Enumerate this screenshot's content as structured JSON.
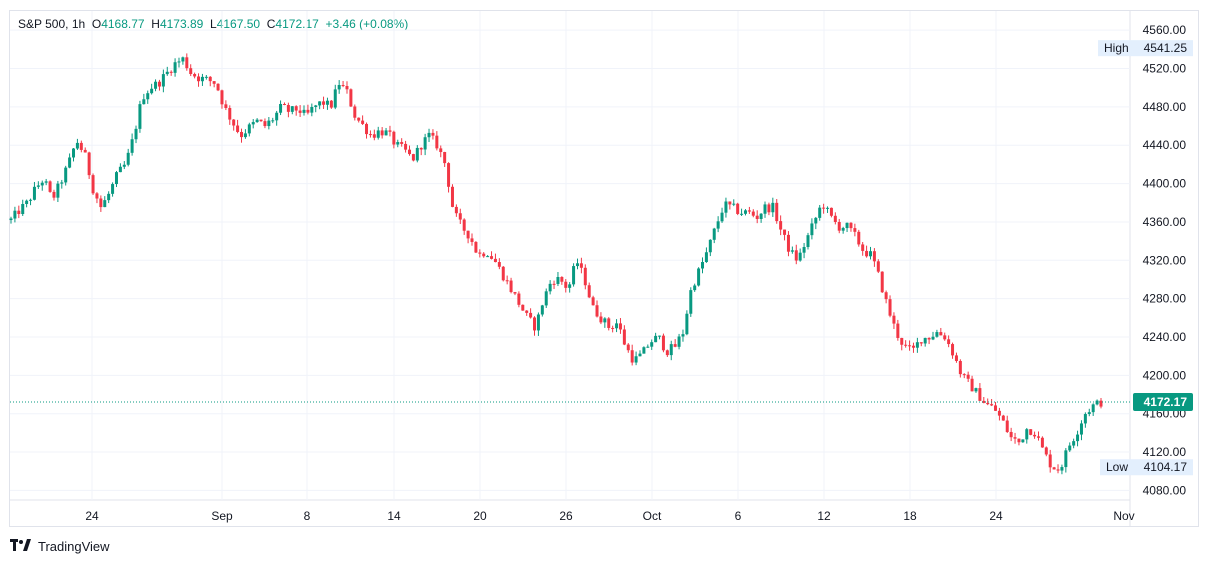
{
  "legend": {
    "symbol": "S&P 500",
    "interval": "1h",
    "open_label": "O",
    "open": "4168.77",
    "high_label": "H",
    "high": "4173.89",
    "low_label": "L",
    "low": "4167.50",
    "close_label": "C",
    "close": "4172.17",
    "change": "+3.46 (+0.08%)"
  },
  "footer": {
    "brand": "TradingView",
    "logo_icon": "tradingview-logo-icon"
  },
  "colors": {
    "up": "#089981",
    "down": "#f23645",
    "grid": "#f0f3fa",
    "axis_text": "#131722",
    "badge_bg": "#e3effd"
  },
  "chart_data": {
    "type": "candlestick",
    "y_ticks": [
      "4560.00",
      "4520.00",
      "4480.00",
      "4440.00",
      "4400.00",
      "4360.00",
      "4320.00",
      "4280.00",
      "4240.00",
      "4200.00",
      "4160.00",
      "4120.00",
      "4080.00"
    ],
    "x_ticks": [
      "24",
      "Sep",
      "8",
      "14",
      "20",
      "26",
      "Oct",
      "6",
      "12",
      "18",
      "24",
      "Nov"
    ],
    "ylim": [
      4070,
      4580
    ],
    "last_price": {
      "value": 4172.17,
      "label": "4172.17"
    },
    "high_marker": {
      "label": "High",
      "value": "4541.25"
    },
    "low_marker": {
      "label": "Low",
      "value": "4104.17"
    },
    "grid": true,
    "close_path": [
      4362,
      4372,
      4380,
      4395,
      4405,
      4383,
      4400,
      4420,
      4445,
      4430,
      4395,
      4375,
      4390,
      4410,
      4420,
      4450,
      4490,
      4500,
      4505,
      4515,
      4525,
      4530,
      4515,
      4510,
      4508,
      4505,
      4480,
      4465,
      4450,
      4458,
      4465,
      4460,
      4468,
      4480,
      4475,
      4478,
      4470,
      4480,
      4485,
      4480,
      4505,
      4495,
      4470,
      4460,
      4450,
      4455,
      4452,
      4440,
      4435,
      4425,
      4440,
      4450,
      4440,
      4420,
      4370,
      4355,
      4345,
      4325,
      4330,
      4320,
      4305,
      4290,
      4275,
      4260,
      4250,
      4280,
      4300,
      4300,
      4290,
      4320,
      4300,
      4270,
      4260,
      4250,
      4255,
      4230,
      4215,
      4222,
      4235,
      4240,
      4225,
      4230,
      4245,
      4290,
      4310,
      4330,
      4355,
      4378,
      4375,
      4370,
      4370,
      4365,
      4375,
      4375,
      4350,
      4330,
      4320,
      4340,
      4360,
      4380,
      4365,
      4355,
      4355,
      4345,
      4330,
      4325,
      4300,
      4270,
      4245,
      4230,
      4225,
      4238,
      4240,
      4245,
      4240,
      4222,
      4200,
      4190,
      4180,
      4170,
      4165,
      4152,
      4135,
      4130,
      4145,
      4140,
      4120,
      4105,
      4102,
      4125,
      4140,
      4160,
      4168,
      4172
    ]
  }
}
